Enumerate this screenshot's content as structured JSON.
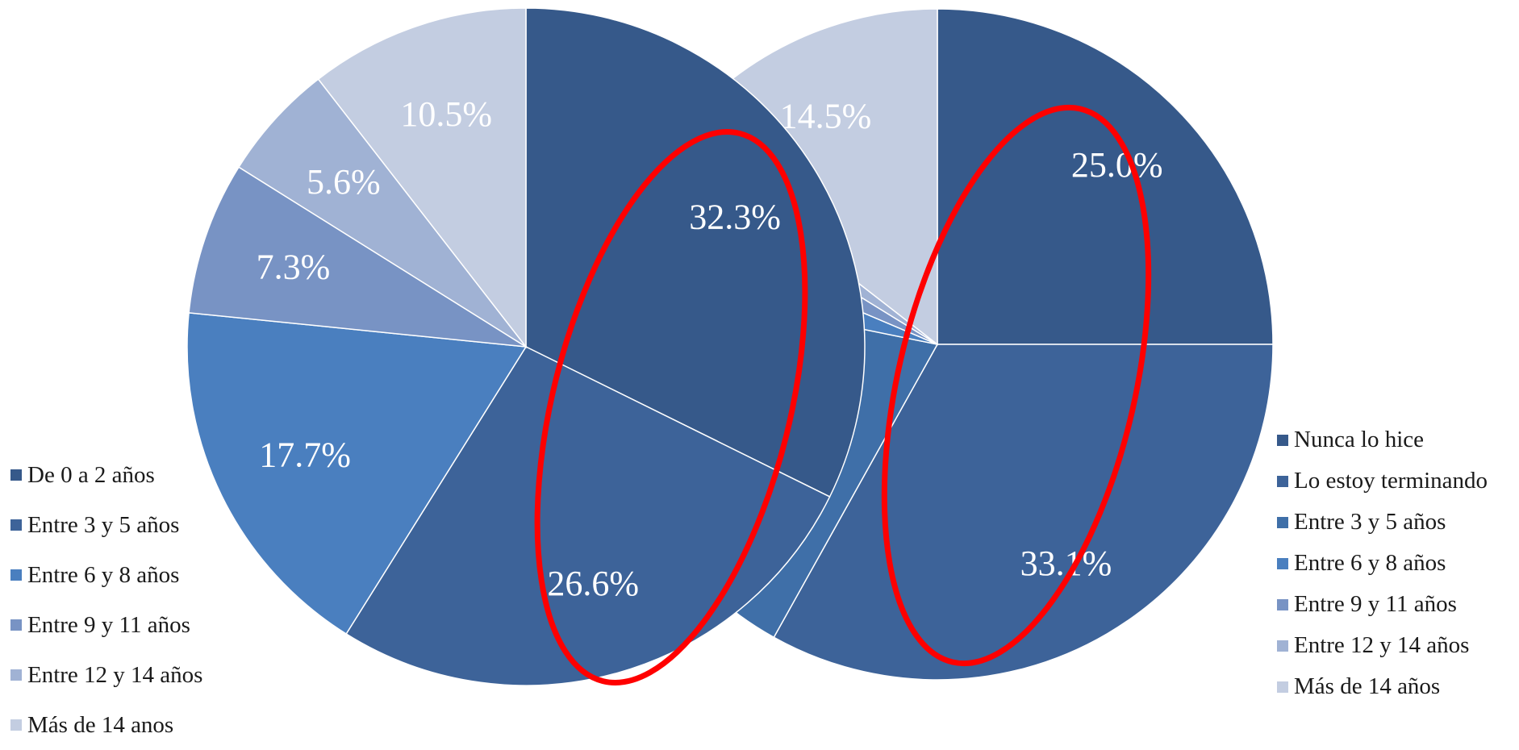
{
  "colors": [
    "#36598a",
    "#3d6399",
    "#3f6fa8",
    "#4a7fbf",
    "#7893c4",
    "#a0b2d4",
    "#c3cde1"
  ],
  "highlight_color": "#ff0000",
  "chart_data": [
    {
      "type": "pie",
      "legend_placement": "left",
      "labels": [
        "De 0 a 2 años",
        "Entre 3 y 5 años",
        "Entre 6 y 8 años",
        "Entre 9 y 11 años",
        "Entre 12 y 14 años",
        "Más de 14 anos"
      ],
      "values": [
        32.3,
        26.6,
        17.7,
        7.3,
        5.6,
        10.5
      ],
      "value_labels": [
        "32.3%",
        "26.6%",
        "17.7%",
        "7.3%",
        "5.6%",
        "10.5%"
      ],
      "color_index": [
        0,
        1,
        3,
        4,
        5,
        6
      ]
    },
    {
      "type": "pie",
      "legend_placement": "right",
      "labels": [
        "Nunca lo hice",
        "Lo estoy terminando",
        "Entre 3 y 5 años",
        "Entre 6 y 8 años",
        "Entre 9 y 11 años",
        "Entre 12 y 14 años",
        "Más de 14 años"
      ],
      "values": [
        25.0,
        33.1,
        20.1,
        3.2,
        2.4,
        1.7,
        14.5
      ],
      "value_labels": [
        "25.0%",
        "33.1%",
        "",
        "",
        "",
        "",
        "14.5%"
      ],
      "color_index": [
        0,
        1,
        2,
        3,
        4,
        5,
        6
      ]
    }
  ]
}
